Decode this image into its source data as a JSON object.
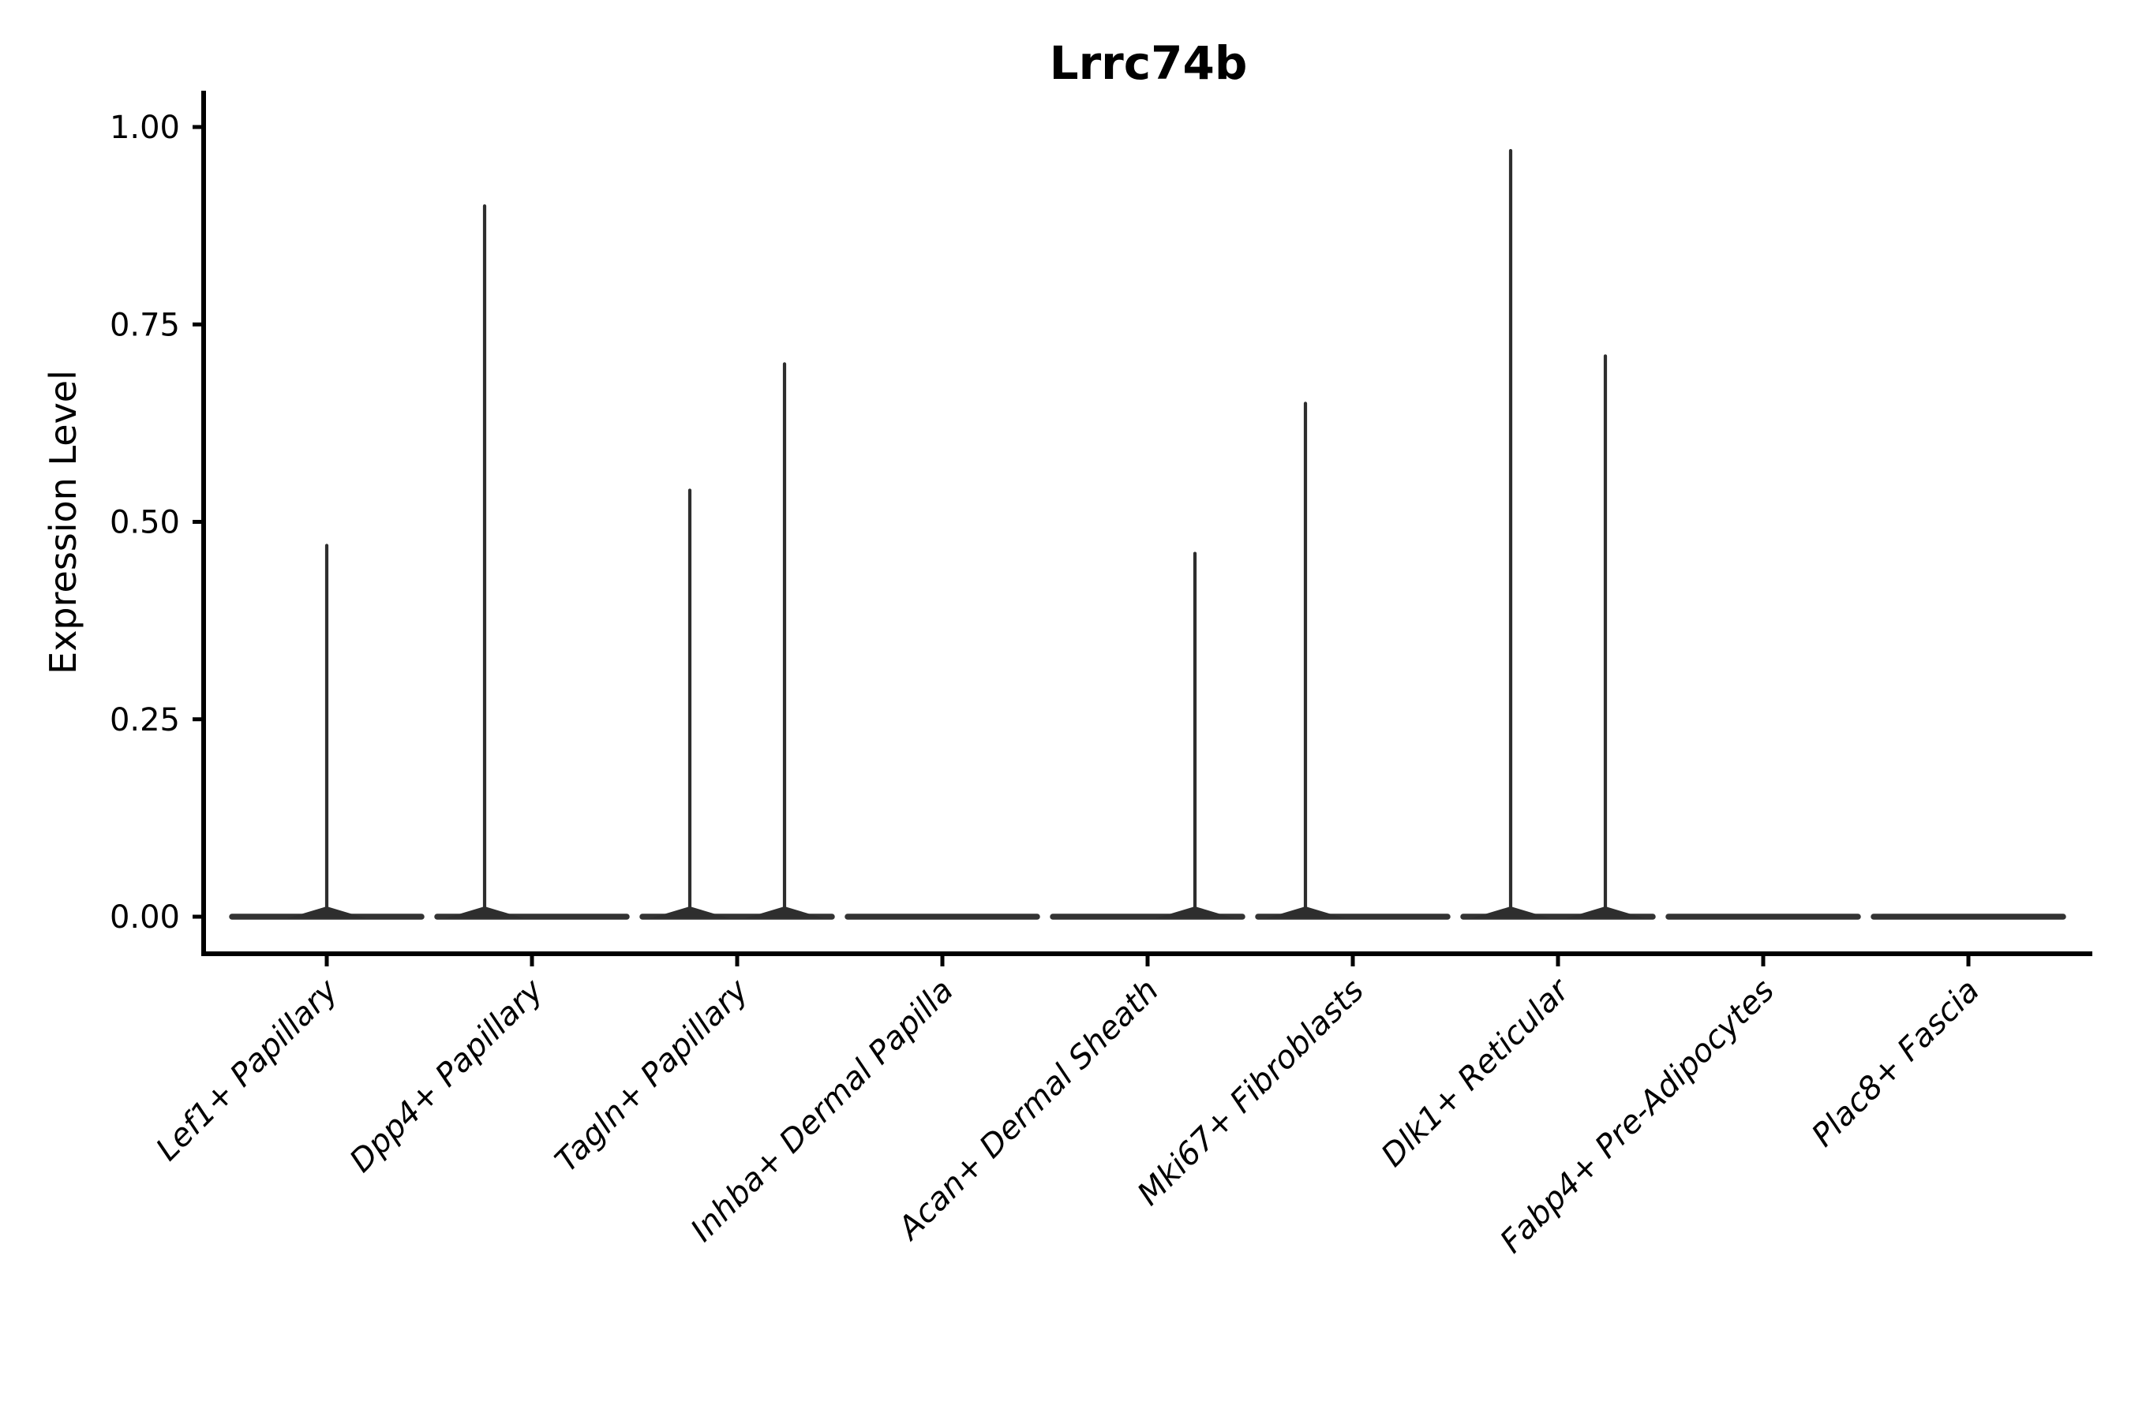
{
  "title": "Lrrc74b",
  "chart_data": {
    "type": "violin",
    "title": "Lrrc74b",
    "xlabel": "",
    "ylabel": "Expression Level",
    "ylim": [
      0,
      1.0
    ],
    "y_ticks": [
      0.0,
      0.25,
      0.5,
      0.75,
      1.0
    ],
    "y_tick_labels": [
      "0.00",
      "0.25",
      "0.50",
      "0.75",
      "1.00"
    ],
    "grid": false,
    "legend": "none",
    "categories": [
      "Lef1+ Papillary",
      "Dpp4+ Papillary",
      "Tagln+ Papillary",
      "Inhba+ Dermal Papilla",
      "Acan+ Dermal Sheath",
      "Mki67+ Fibroblasts",
      "Dlk1+ Reticular",
      "Fabp4+ Pre-Adipocytes",
      "Plac8+ Fascia"
    ],
    "violins": [
      {
        "category": "Lef1+ Papillary",
        "spikes": [
          {
            "position": "center",
            "max": 0.47
          }
        ]
      },
      {
        "category": "Dpp4+ Papillary",
        "spikes": [
          {
            "position": "left",
            "max": 0.9
          }
        ]
      },
      {
        "category": "Tagln+ Papillary",
        "spikes": [
          {
            "position": "left",
            "max": 0.54
          },
          {
            "position": "right",
            "max": 0.7
          }
        ]
      },
      {
        "category": "Inhba+ Dermal Papilla",
        "spikes": []
      },
      {
        "category": "Acan+ Dermal Sheath",
        "spikes": [
          {
            "position": "right",
            "max": 0.46
          }
        ]
      },
      {
        "category": "Mki67+ Fibroblasts",
        "spikes": [
          {
            "position": "left",
            "max": 0.65
          }
        ]
      },
      {
        "category": "Dlk1+ Reticular",
        "spikes": [
          {
            "position": "left",
            "max": 0.97
          },
          {
            "position": "right",
            "max": 0.71
          }
        ]
      },
      {
        "category": "Fabp4+ Pre-Adipocytes",
        "spikes": []
      },
      {
        "category": "Plac8+ Fascia",
        "spikes": []
      }
    ],
    "colors": {
      "violin_line": "#333333",
      "spike_line": "#2e2e2e",
      "axis": "#000000",
      "text": "#000000",
      "background": "#ffffff"
    }
  }
}
